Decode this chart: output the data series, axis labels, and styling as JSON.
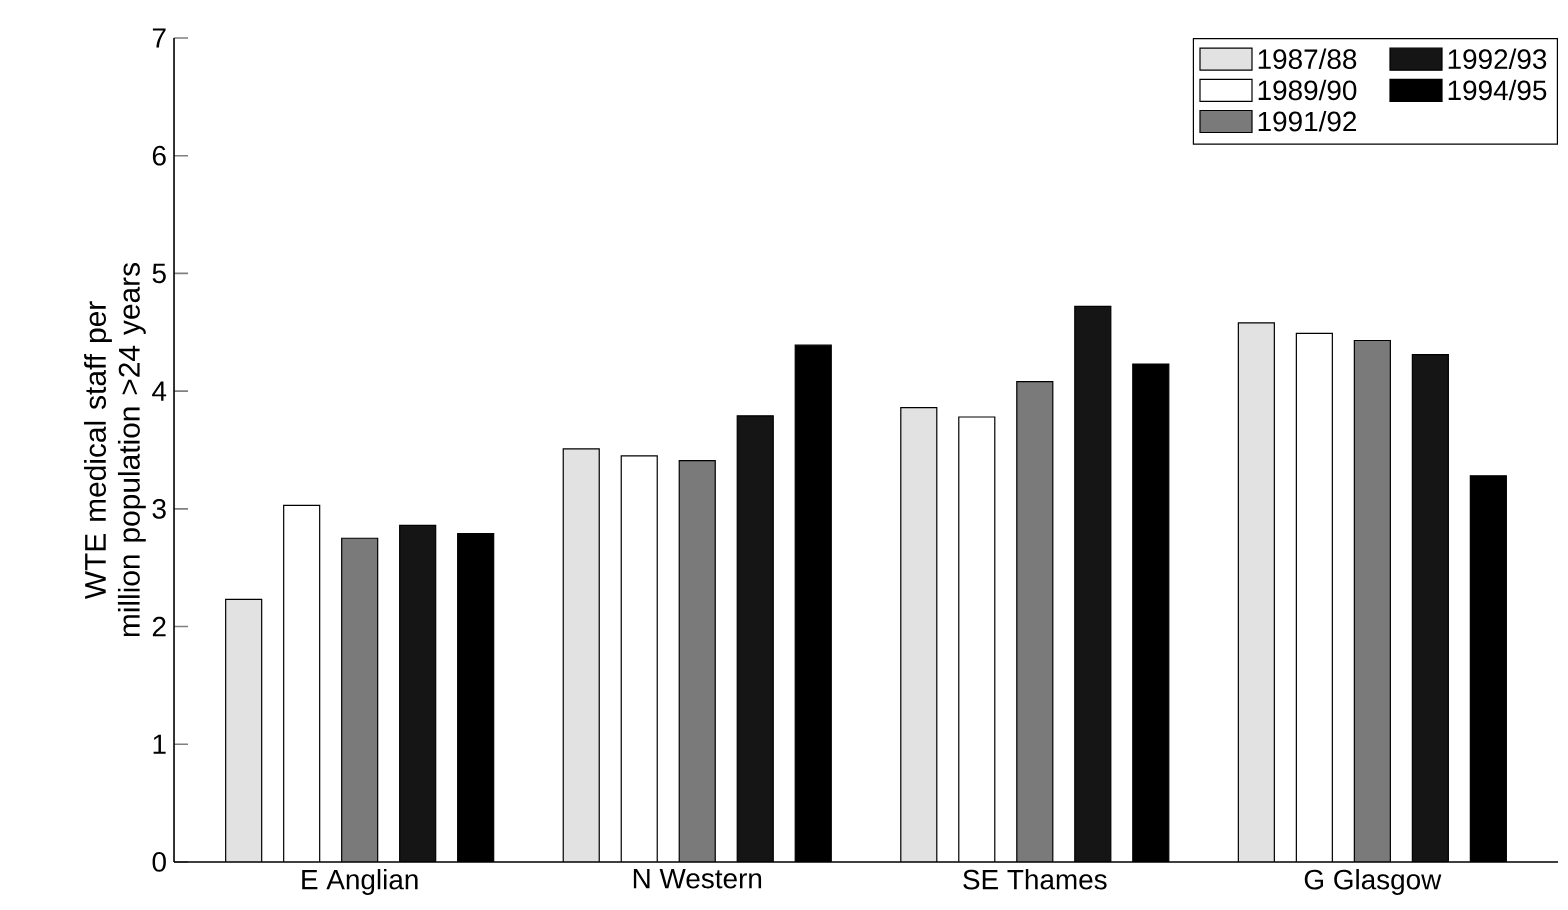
{
  "chart_data": {
    "type": "bar",
    "ylabel": "WTE medical staff per million population >24 years",
    "categories": [
      "E Anglian",
      "N Western",
      "SE Thames",
      "G Glasgow"
    ],
    "series": [
      {
        "name": "1987/88",
        "color": "#e2e2e2",
        "values": [
          2.23,
          3.51,
          3.86,
          4.58
        ]
      },
      {
        "name": "1989/90",
        "color": "#ffffff",
        "values": [
          3.03,
          3.45,
          3.78,
          4.49
        ]
      },
      {
        "name": "1991/92",
        "color": "#7a7a7a",
        "values": [
          2.75,
          3.41,
          4.08,
          4.43
        ]
      },
      {
        "name": "1992/93",
        "color": "#151515",
        "values": [
          2.86,
          3.79,
          4.72,
          4.31
        ]
      },
      {
        "name": "1994/95",
        "color": "#000000",
        "values": [
          2.79,
          4.39,
          4.23,
          3.28
        ]
      }
    ],
    "ylim": [
      0,
      7
    ],
    "yticks": [
      0,
      1,
      2,
      3,
      4,
      5,
      6,
      7
    ],
    "legend": "top right"
  }
}
